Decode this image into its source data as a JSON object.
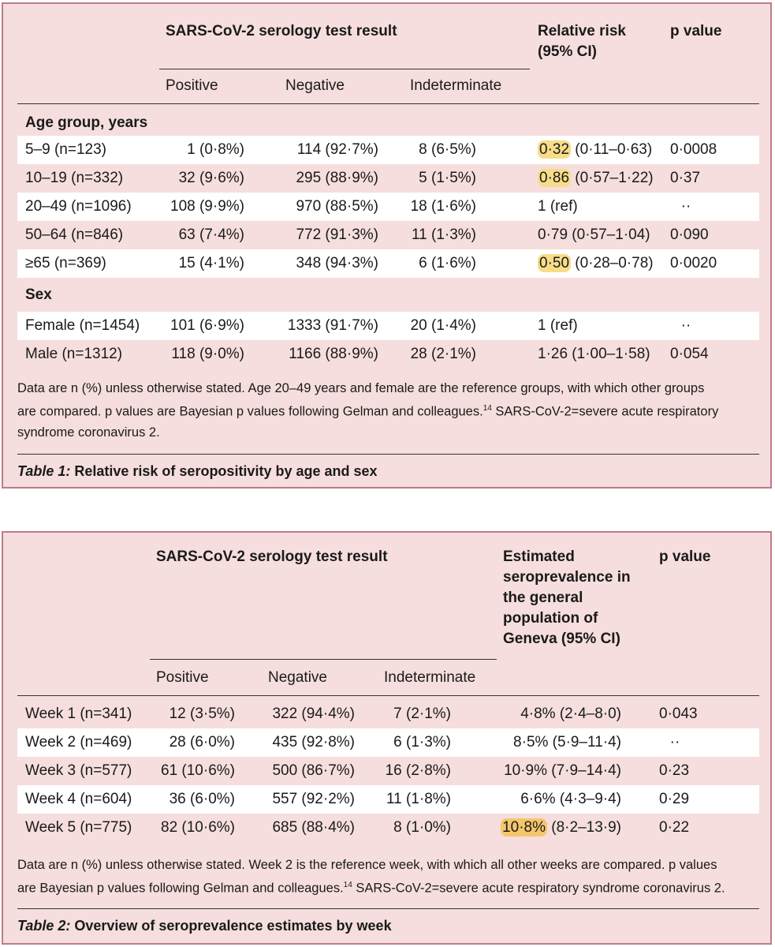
{
  "table1": {
    "group_header": "SARS-CoV-2 serology test result",
    "rr_header": [
      "Relative risk",
      "(95% CI)"
    ],
    "p_header": "p value",
    "sub_headers": [
      "Positive",
      "Negative",
      "Indeterminate"
    ],
    "section_age": "Age group, years",
    "section_sex": "Sex",
    "age_rows": [
      {
        "label": "5–9 (n=123)",
        "pos": "1 (0·8%)",
        "neg": "114 (92·7%)",
        "ind": "8 (6·5%)",
        "rr_main": "0·32",
        "rr_ci": " (0·11–0·63)",
        "p": "0·0008"
      },
      {
        "label": "10–19 (n=332)",
        "pos": "32 (9·6%)",
        "neg": "295 (88·9%)",
        "ind": "5 (1·5%)",
        "rr_main": "0·86",
        "rr_ci": " (0·57–1·22)",
        "p": "0·37"
      },
      {
        "label": "20–49 (n=1096)",
        "pos": "108 (9·9%)",
        "neg": "970 (88·5%)",
        "ind": "18 (1·6%)",
        "rr_main": "1 (ref)",
        "rr_ci": "",
        "p": "··"
      },
      {
        "label": "50–64 (n=846)",
        "pos": "63 (7·4%)",
        "neg": "772 (91·3%)",
        "ind": "11 (1·3%)",
        "rr_main": "0·79",
        "rr_ci": " (0·57–1·04)",
        "p": "0·090"
      },
      {
        "label": "≥65 (n=369)",
        "pos": "15 (4·1%)",
        "neg": "348 (94·3%)",
        "ind": "6 (1·6%)",
        "rr_main": "0·50",
        "rr_ci": " (0·28–0·78)",
        "p": "0·0020"
      }
    ],
    "sex_rows": [
      {
        "label": "Female (n=1454)",
        "pos": "101 (6·9%)",
        "neg": "1333 (91·7%)",
        "ind": "20 (1·4%)",
        "rr_main": "1 (ref)",
        "rr_ci": "",
        "p": "··"
      },
      {
        "label": "Male (n=1312)",
        "pos": "118 (9·0%)",
        "neg": "1166 (88·9%)",
        "ind": "28 (2·1%)",
        "rr_main": "1·26",
        "rr_ci": " (1·00–1·58)",
        "p": "0·054"
      }
    ],
    "note_lines": [
      "Data are n (%) unless otherwise stated. Age 20–49 years and female are the reference groups, with which other groups",
      "are compared. p values are Bayesian p values following Gelman and colleagues.",
      " SARS-CoV-2=severe acute respiratory",
      "syndrome coronavirus 2."
    ],
    "note_ref": "14",
    "caption_label": "Table 1:",
    "caption_text": " Relative risk of seropositivity by age and sex"
  },
  "table2": {
    "group_header": "SARS-CoV-2 serology test result",
    "est_header": [
      "Estimated",
      "seroprevalence in",
      "the general",
      "population of",
      "Geneva (95% CI)"
    ],
    "p_header": "p value",
    "sub_headers": [
      "Positive",
      "Negative",
      "Indeterminate"
    ],
    "rows": [
      {
        "label": "Week 1 (n=341)",
        "pos": "12 (3·5%)",
        "neg": "322 (94·4%)",
        "ind": "7 (2·1%)",
        "est_main": "4·8%",
        "est_ci": " (2·4–8·0)",
        "p": "0·043"
      },
      {
        "label": "Week 2 (n=469)",
        "pos": "28 (6·0%)",
        "neg": "435 (92·8%)",
        "ind": "6 (1·3%)",
        "est_main": "8·5%",
        "est_ci": " (5·9–11·4)",
        "p": "··"
      },
      {
        "label": "Week 3 (n=577)",
        "pos": "61 (10·6%)",
        "neg": "500 (86·7%)",
        "ind": "16 (2·8%)",
        "est_main": "10·9%",
        "est_ci": " (7·9–14·4)",
        "p": "0·23"
      },
      {
        "label": "Week 4 (n=604)",
        "pos": "36 (6·0%)",
        "neg": "557 (92·2%)",
        "ind": "11 (1·8%)",
        "est_main": "6·6%",
        "est_ci": " (4·3–9·4)",
        "p": "0·29"
      },
      {
        "label": "Week 5 (n=775)",
        "pos": "82 (10·6%)",
        "neg": "685 (88·4%)",
        "ind": "8 (1·0%)",
        "est_main": "10·8%",
        "est_ci": " (8·2–13·9)",
        "p": "0·22"
      }
    ],
    "note_lines": [
      "Data are n (%) unless otherwise stated. Week 2 is the reference week, with which all other weeks are compared. p values",
      "are Bayesian p values following Gelman and colleagues.",
      " SARS-CoV-2=severe acute respiratory syndrome coronavirus 2."
    ],
    "note_ref": "14",
    "caption_label": "Table 2:",
    "caption_text": " Overview of seroprevalence estimates by week"
  }
}
